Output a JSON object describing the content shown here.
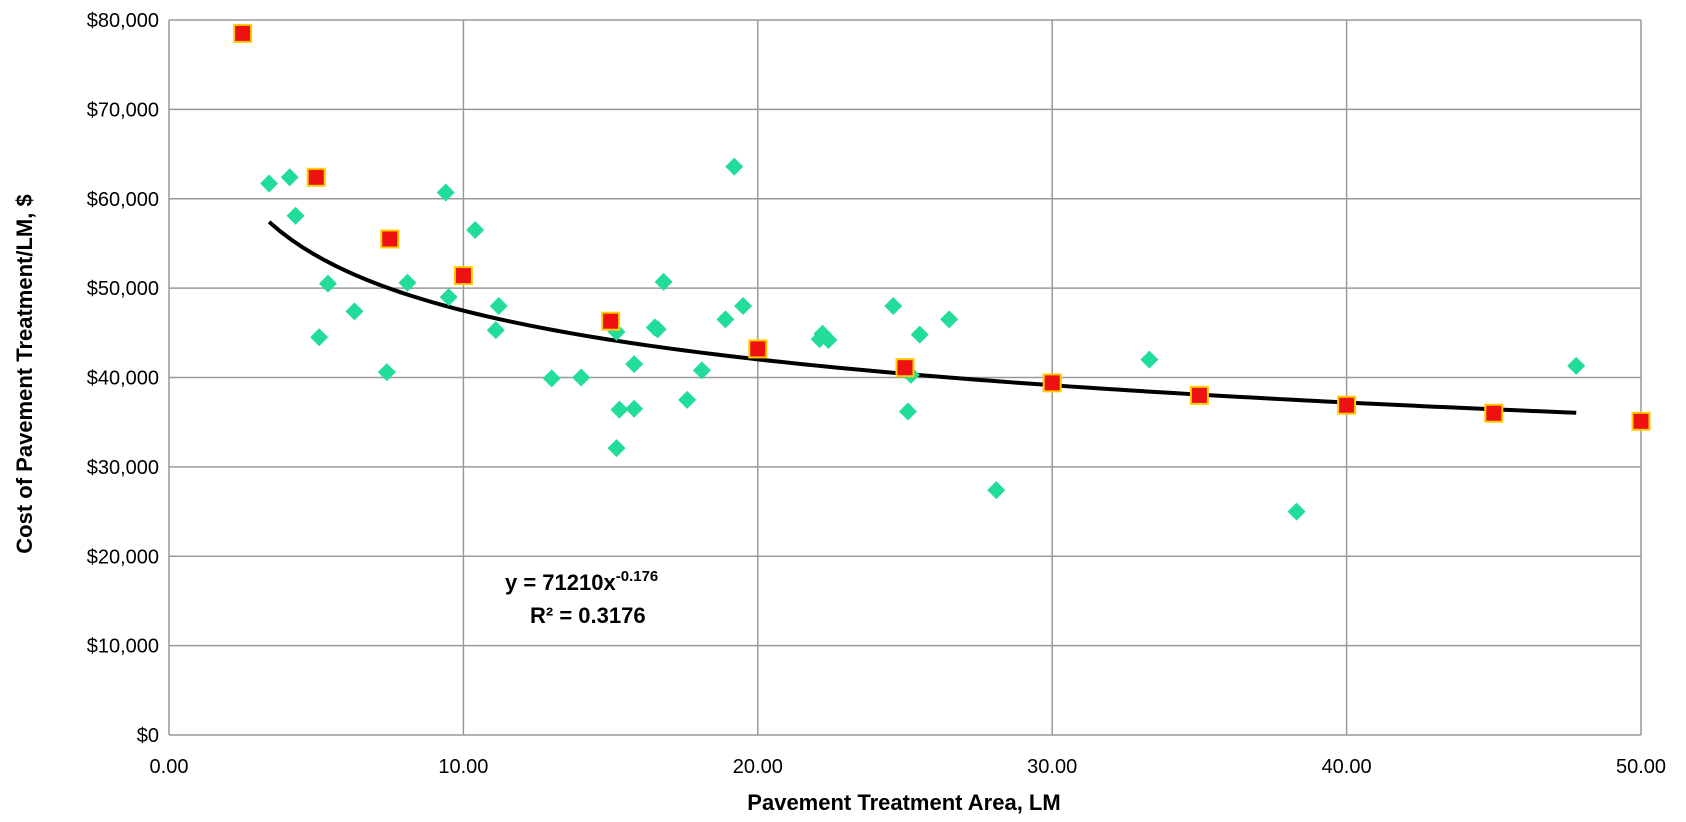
{
  "chart_data": {
    "type": "scatter",
    "xlabel": "Pavement Treatment Area, LM",
    "ylabel": "Cost of Pavement Treatment/LM, $",
    "xlim": [
      0,
      50
    ],
    "ylim": [
      0,
      80000
    ],
    "x_ticks": [
      0,
      10,
      20,
      30,
      40,
      50
    ],
    "x_tick_labels": [
      "0.00",
      "10.00",
      "20.00",
      "30.00",
      "40.00",
      "50.00"
    ],
    "y_ticks": [
      0,
      10000,
      20000,
      30000,
      40000,
      50000,
      60000,
      70000,
      80000
    ],
    "y_tick_labels": [
      "$0",
      "$10,000",
      "$20,000",
      "$30,000",
      "$40,000",
      "$50,000",
      "$60,000",
      "$70,000",
      "$80,000"
    ],
    "grid": true,
    "colors": {
      "observed": "#22dd99",
      "predicted_fill": "#ee1111",
      "predicted_edge": "#ffcc00",
      "trendline": "#000000",
      "grid": "#999999"
    },
    "series": [
      {
        "marker": "diamond",
        "points": [
          [
            3.4,
            61700
          ],
          [
            4.1,
            62400
          ],
          [
            4.3,
            58100
          ],
          [
            5.1,
            44500
          ],
          [
            5.4,
            50500
          ],
          [
            6.3,
            47400
          ],
          [
            7.4,
            40600
          ],
          [
            8.1,
            50600
          ],
          [
            9.4,
            60700
          ],
          [
            9.5,
            49000
          ],
          [
            10.4,
            56500
          ],
          [
            11.1,
            45300
          ],
          [
            11.2,
            48000
          ],
          [
            13.0,
            39900
          ],
          [
            14.0,
            40000
          ],
          [
            15.2,
            32100
          ],
          [
            15.2,
            45100
          ],
          [
            15.3,
            36400
          ],
          [
            15.8,
            41500
          ],
          [
            15.8,
            36500
          ],
          [
            16.5,
            45600
          ],
          [
            16.6,
            45400
          ],
          [
            16.8,
            50700
          ],
          [
            17.6,
            37500
          ],
          [
            18.1,
            40800
          ],
          [
            18.9,
            46500
          ],
          [
            19.2,
            63600
          ],
          [
            19.5,
            48000
          ],
          [
            22.1,
            44300
          ],
          [
            22.2,
            44900
          ],
          [
            22.4,
            44200
          ],
          [
            24.6,
            48000
          ],
          [
            25.1,
            36200
          ],
          [
            25.2,
            40300
          ],
          [
            25.5,
            44800
          ],
          [
            26.5,
            46500
          ],
          [
            28.1,
            27400
          ],
          [
            33.3,
            42000
          ],
          [
            38.3,
            25000
          ],
          [
            47.8,
            41300
          ]
        ]
      },
      {
        "marker": "square",
        "points": [
          [
            2.5,
            78500
          ],
          [
            5.0,
            62400
          ],
          [
            7.5,
            55500
          ],
          [
            10.0,
            51400
          ],
          [
            15.0,
            46300
          ],
          [
            20.0,
            43200
          ],
          [
            25.0,
            41100
          ],
          [
            30.0,
            39400
          ],
          [
            35.0,
            38000
          ],
          [
            40.0,
            36900
          ],
          [
            45.0,
            36000
          ],
          [
            50.0,
            35100
          ]
        ]
      }
    ],
    "trendline": {
      "type": "power",
      "a": 71210,
      "b": -0.176,
      "x_range": [
        3.4,
        47.8
      ],
      "equation_prefix": "y = 71210x",
      "equation_exponent": "-0.176",
      "r_squared_label": "R² = 0.3176"
    }
  }
}
